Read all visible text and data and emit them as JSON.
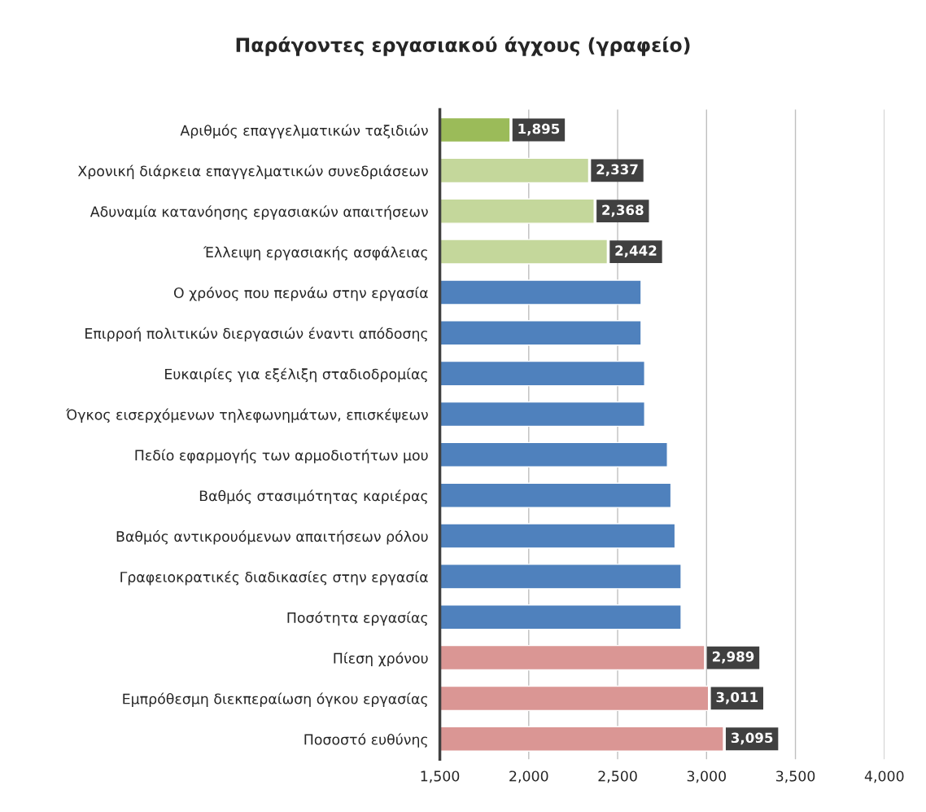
{
  "chart_data": {
    "type": "bar",
    "orientation": "horizontal",
    "title": "Παράγοντες εργασιακού άγχους (γραφείο)",
    "categories": [
      "Αριθμός επαγγελματικών ταξιδιών",
      "Χρονική διάρκεια επαγγελματικών συνεδριάσεων",
      "Αδυναμία κατανόησης εργασιακών απαιτήσεων",
      "Έλλειψη εργασιακής ασφάλειας",
      "Ο χρόνος που περνάω στην εργασία",
      "Επιρροή πολιτικών διεργασιών έναντι απόδοσης",
      "Ευκαιρίες για εξέλιξη σταδιοδρομίας",
      "Όγκος εισερχόμενων τηλεφωνημάτων, επισκέψεων",
      "Πεδίο εφαρμογής των αρμοδιοτήτων μου",
      "Βαθμός στασιμότητας καριέρας",
      "Βαθμός αντικρουόμενων απαιτήσεων ρόλου",
      "Γραφειοκρατικές διαδικασίες στην εργασία",
      "Ποσότητα εργασίας",
      "Πίεση χρόνου",
      "Εμπρόθεσμη διεκπεραίωση όγκου εργασίας",
      "Ποσοστό ευθύνης"
    ],
    "values": [
      1895,
      2337,
      2368,
      2442,
      2632,
      2632,
      2652,
      2652,
      2780,
      2800,
      2823,
      2857,
      2857,
      2989,
      3011,
      3095
    ],
    "colors": [
      "#9bbb59",
      "#c4d79b",
      "#c4d79b",
      "#c4d79b",
      "#4f81bd",
      "#4f81bd",
      "#4f81bd",
      "#4f81bd",
      "#4f81bd",
      "#4f81bd",
      "#4f81bd",
      "#4f81bd",
      "#4f81bd",
      "#da9694",
      "#da9694",
      "#da9694"
    ],
    "value_labels": [
      "1,895",
      "2,337",
      "2,368",
      "2,442",
      null,
      null,
      null,
      null,
      null,
      null,
      null,
      null,
      null,
      "2,989",
      "3,011",
      "3,095"
    ],
    "xlim": [
      1500,
      4000
    ],
    "xticks": [
      {
        "value": 1500,
        "label": "1,500"
      },
      {
        "value": 2000,
        "label": "2,000"
      },
      {
        "value": 2500,
        "label": "2,500"
      },
      {
        "value": 3000,
        "label": "3,000"
      },
      {
        "value": 3500,
        "label": "3,500"
      },
      {
        "value": 4000,
        "label": "4,000"
      }
    ],
    "grid": "x"
  }
}
